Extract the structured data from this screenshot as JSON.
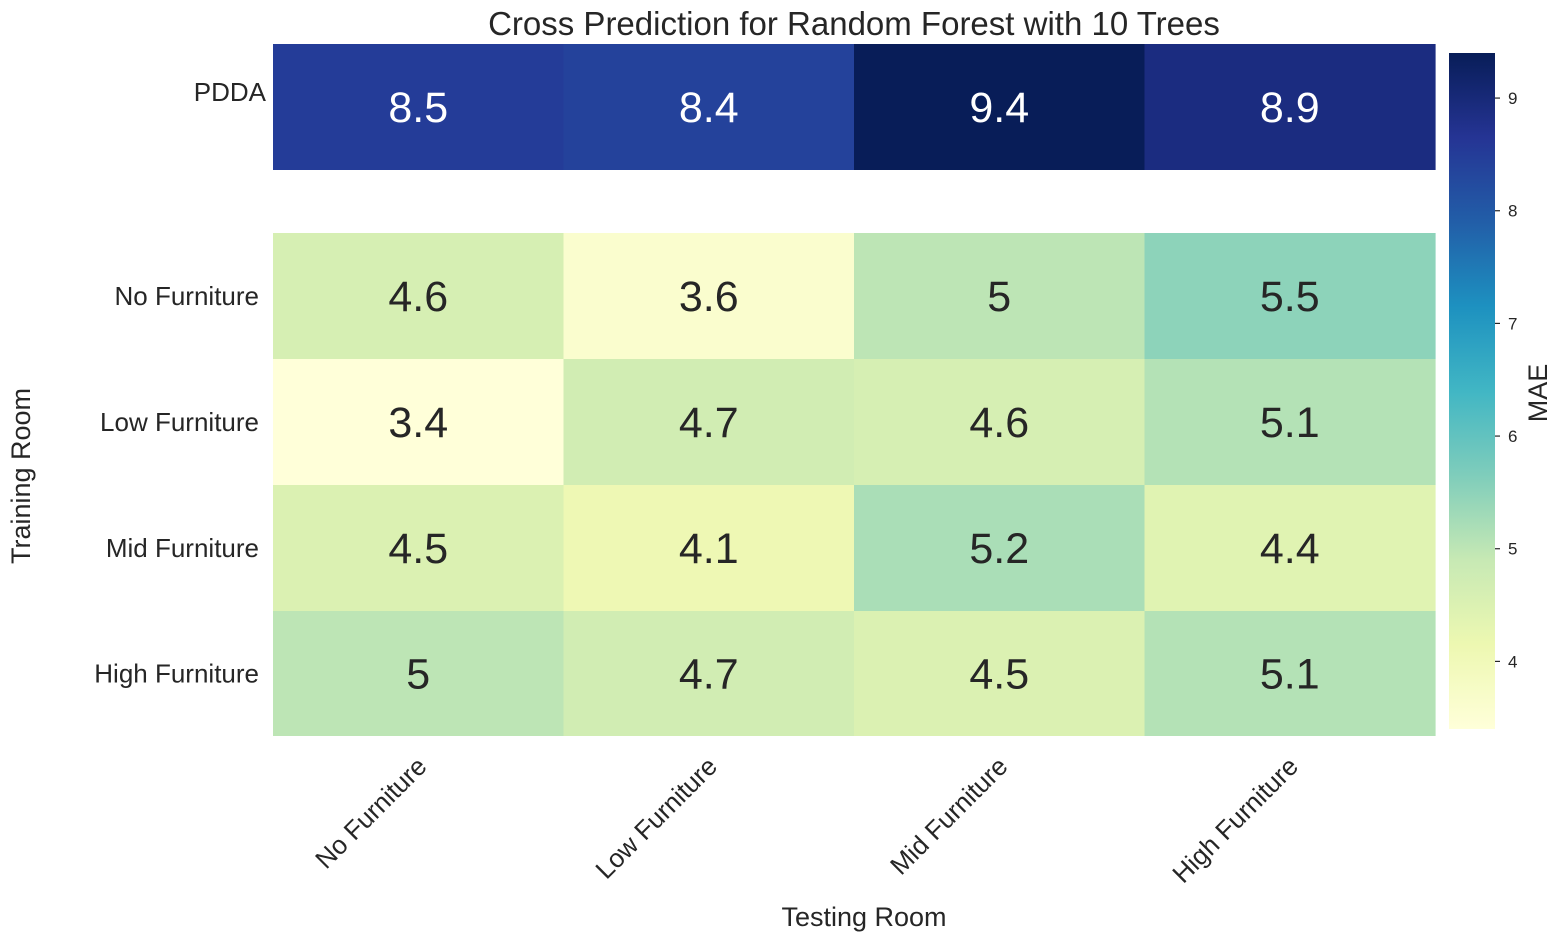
{
  "chart_data": {
    "type": "heatmap",
    "title": "Cross Prediction for Random Forest with 10 Trees",
    "xlabel": "Testing Room",
    "ylabel": "Training Room",
    "x_categories": [
      "No Furniture",
      "Low Furniture",
      "Mid Furniture",
      "High Furniture"
    ],
    "rows": [
      {
        "label": "PDDA",
        "values": [
          8.5,
          8.4,
          9.4,
          8.9
        ]
      },
      {
        "label": "No Furniture",
        "values": [
          4.6,
          3.6,
          5,
          5.5
        ]
      },
      {
        "label": "Low Furniture",
        "values": [
          3.4,
          4.7,
          4.6,
          5.1
        ]
      },
      {
        "label": "Mid Furniture",
        "values": [
          4.5,
          4.1,
          5.2,
          4.4
        ]
      },
      {
        "label": "High Furniture",
        "values": [
          5,
          4.7,
          4.5,
          5.1
        ]
      }
    ],
    "colorbar": {
      "label": "MAE",
      "range": [
        3.4,
        9.4
      ],
      "ticks": [
        4,
        5,
        6,
        7,
        8,
        9
      ],
      "colormap": "YlGnBu",
      "stops": [
        "#ffffd9",
        "#edf8b1",
        "#c7e9b4",
        "#7fcdbb",
        "#41b6c4",
        "#1d91c0",
        "#225ea8",
        "#253494",
        "#081d58"
      ]
    },
    "annotation_colors": {
      "light": "#ffffff",
      "dark": "#262626"
    }
  }
}
